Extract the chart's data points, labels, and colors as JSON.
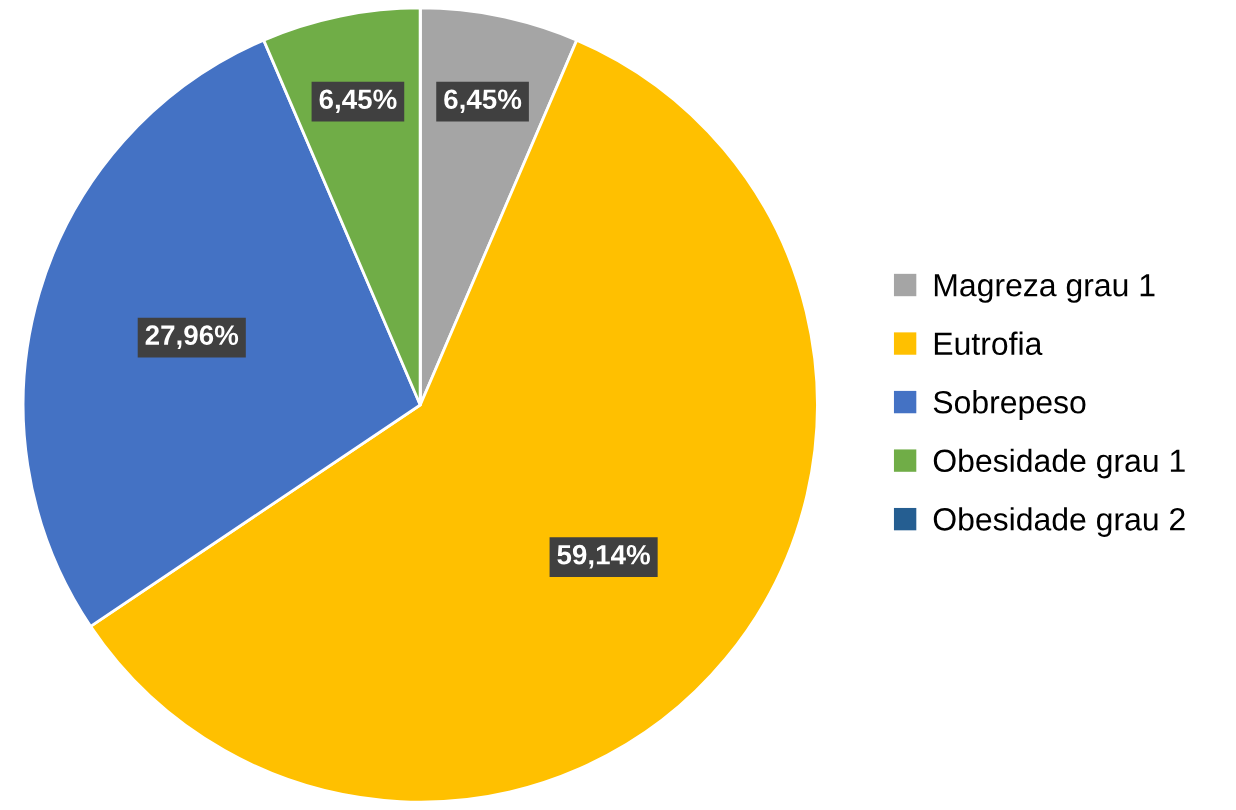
{
  "chart_data": {
    "type": "pie",
    "categories": [
      "Magreza grau 1",
      "Eutrofia",
      "Sobrepeso",
      "Obesidade grau 1",
      "Obesidade grau 2"
    ],
    "values": [
      6.45,
      59.14,
      27.96,
      6.45,
      0
    ],
    "colors": [
      "#a5a5a5",
      "#ffc000",
      "#4472c4",
      "#70ad47",
      "#255e91"
    ],
    "value_labels": [
      "6,45%",
      "59,14%",
      "27,96%",
      "6,45%",
      null
    ],
    "legend": "right"
  }
}
